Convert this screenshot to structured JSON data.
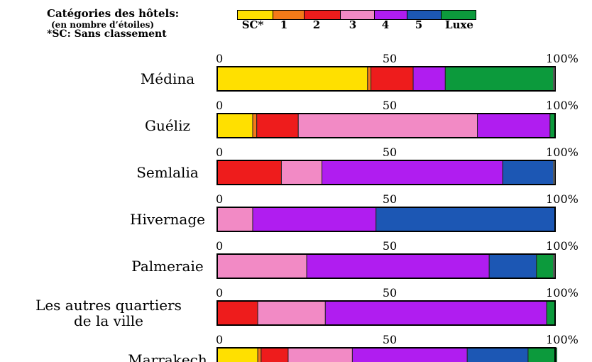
{
  "legend": {
    "title": "Catégories des hôtels:",
    "subtitle": "(en nombre d’étoiles)",
    "note": "*SC: Sans classement",
    "items": [
      {
        "label": "SC*",
        "color": "#ffe000"
      },
      {
        "label": "1",
        "color": "#f47a18"
      },
      {
        "label": "2",
        "color": "#ee1c1c"
      },
      {
        "label": "3",
        "color": "#f28ac5"
      },
      {
        "label": "4",
        "color": "#b01df0"
      },
      {
        "label": "5",
        "color": "#1c57b4"
      },
      {
        "label": "Luxe",
        "color": "#0c9a3c"
      }
    ]
  },
  "chart_data": {
    "type": "bar",
    "orientation": "horizontal",
    "stacked": true,
    "percent": true,
    "xlim": [
      0,
      100
    ],
    "tick_labels": [
      "0",
      "50",
      "100%"
    ],
    "legend_position": "top",
    "categories": [
      "Médina",
      "Guéliz",
      "Semlalia",
      "Hivernage",
      "Palmeraie",
      "Les autres quartiers de la ville",
      "Marrakech"
    ],
    "category_lines": [
      [
        "Médina"
      ],
      [
        "Guéliz"
      ],
      [
        "Semlalia"
      ],
      [
        "Hivernage"
      ],
      [
        "Palmeraie"
      ],
      [
        "Les autres quartiers",
        "de la ville"
      ],
      [
        "Marrakech"
      ]
    ],
    "series": [
      {
        "name": "SC*",
        "color": "#ffe000",
        "values": [
          44.5,
          10.5,
          0,
          0,
          0,
          0,
          12
        ]
      },
      {
        "name": "1",
        "color": "#f47a18",
        "values": [
          1,
          1.2,
          0,
          0,
          0,
          0,
          1
        ]
      },
      {
        "name": "2",
        "color": "#ee1c1c",
        "values": [
          12.5,
          12.3,
          19,
          0,
          0,
          12,
          8
        ]
      },
      {
        "name": "3",
        "color": "#f28ac5",
        "values": [
          0,
          53,
          12,
          10.5,
          26.5,
          20,
          19
        ]
      },
      {
        "name": "4",
        "color": "#b01df0",
        "values": [
          9.5,
          21.5,
          53.5,
          36.5,
          54,
          65.5,
          34
        ]
      },
      {
        "name": "5",
        "color": "#1c57b4",
        "values": [
          0,
          0,
          15,
          53,
          14,
          0,
          18
        ]
      },
      {
        "name": "Luxe",
        "color": "#0c9a3c",
        "values": [
          32,
          1.5,
          0,
          0,
          5,
          2.5,
          8.5
        ]
      }
    ]
  }
}
